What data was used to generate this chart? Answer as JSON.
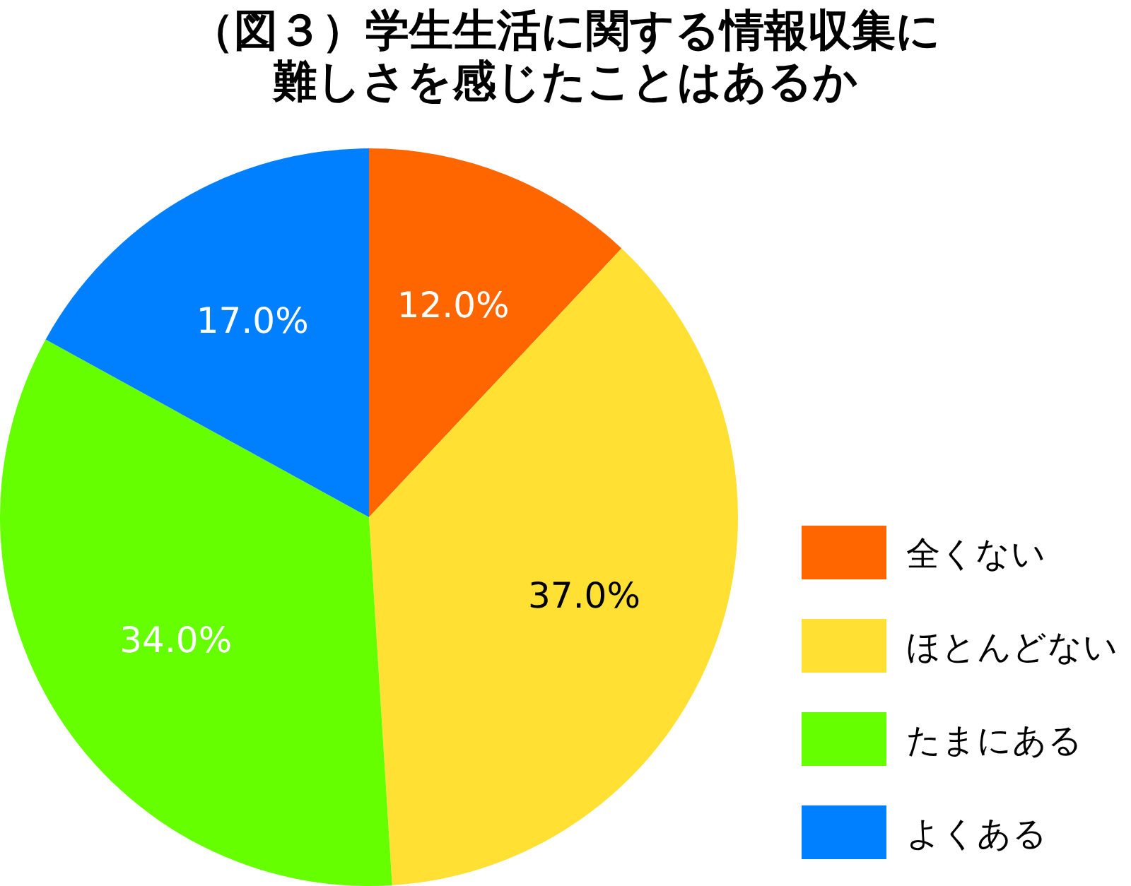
{
  "chart_data": {
    "type": "pie",
    "title": "（図３）学生生活に関する情報収集に難しさを感じたことはあるか",
    "categories": [
      "全くない",
      "ほとんどない",
      "たまにある",
      "よくある"
    ],
    "values": [
      12.0,
      37.0,
      34.0,
      17.0
    ],
    "colors": [
      "#ff6600",
      "#ffe033",
      "#66ff00",
      "#0080ff"
    ],
    "value_labels": [
      "12.0%",
      "37.0%",
      "34.0%",
      "17.0%"
    ],
    "legend": "right"
  }
}
